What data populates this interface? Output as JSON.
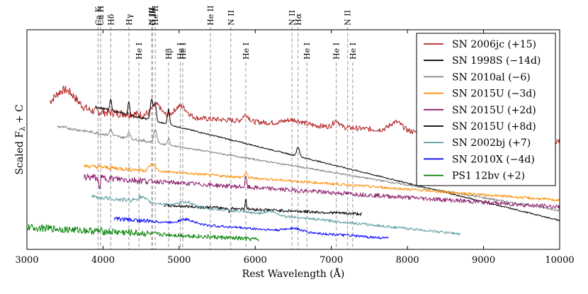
{
  "chart_data": {
    "type": "line",
    "title": "",
    "xlabel": "Rest Wavelength (Å)",
    "ylabel_main": "Scaled F",
    "ylabel_sub": "λ",
    "ylabel_tail": " + C",
    "xlim": [
      3000,
      10000
    ],
    "ylim": [
      0,
      1
    ],
    "x_ticks": [
      3000,
      4000,
      5000,
      6000,
      7000,
      8000,
      9000,
      10000
    ],
    "x_tick_labels": [
      "3000",
      "4000",
      "5000",
      "6000",
      "7000",
      "8000",
      "9000",
      "10000"
    ],
    "line_ids": [
      {
        "label": "Ca K",
        "wavelength": 3934,
        "tier": "top"
      },
      {
        "label": "Ca H",
        "wavelength": 3968,
        "tier": "top"
      },
      {
        "label": "Hδ",
        "wavelength": 4102,
        "tier": "top"
      },
      {
        "label": "Hγ",
        "wavelength": 4340,
        "tier": "top"
      },
      {
        "label": "N III",
        "wavelength": 4640,
        "tier": "top"
      },
      {
        "label": "C III",
        "wavelength": 4650,
        "tier": "top"
      },
      {
        "label": "He II",
        "wavelength": 4686,
        "tier": "top"
      },
      {
        "label": "He II",
        "wavelength": 5411,
        "tier": "top"
      },
      {
        "label": "N II",
        "wavelength": 5679,
        "tier": "top"
      },
      {
        "label": "N II",
        "wavelength": 6482,
        "tier": "top"
      },
      {
        "label": "Hα",
        "wavelength": 6563,
        "tier": "top"
      },
      {
        "label": "N II",
        "wavelength": 7214,
        "tier": "top"
      },
      {
        "label": "He I",
        "wavelength": 4471,
        "tier": "low"
      },
      {
        "label": "Hβ",
        "wavelength": 4861,
        "tier": "low"
      },
      {
        "label": "He I",
        "wavelength": 5016,
        "tier": "low"
      },
      {
        "label": "He I",
        "wavelength": 5048,
        "tier": "low"
      },
      {
        "label": "He I",
        "wavelength": 5876,
        "tier": "low"
      },
      {
        "label": "He I",
        "wavelength": 6678,
        "tier": "low"
      },
      {
        "label": "He I",
        "wavelength": 7065,
        "tier": "low"
      },
      {
        "label": "He I",
        "wavelength": 7281,
        "tier": "low"
      }
    ],
    "legend_position": "top-right",
    "series": [
      {
        "name": "SN 2006jc (+15)",
        "color": "#b22222",
        "range": [
          3300,
          10000
        ],
        "base": 0.64,
        "slope": -2.2e-05,
        "features": [
          [
            3500,
            0.09,
            140
          ],
          [
            4700,
            0.05,
            60
          ],
          [
            5020,
            0.05,
            80
          ],
          [
            5876,
            0.03,
            40
          ],
          [
            6500,
            0.02,
            120
          ],
          [
            7065,
            0.03,
            40
          ],
          [
            7850,
            0.04,
            80
          ]
        ],
        "noise": 0.012
      },
      {
        "name": "SN 1998S (−14d)",
        "color": "#000000",
        "range": [
          3900,
          10000
        ],
        "base": 0.65,
        "slope": -8.5e-05,
        "features": [
          [
            4102,
            0.05,
            12
          ],
          [
            4340,
            0.06,
            12
          ],
          [
            4640,
            0.1,
            18
          ],
          [
            4686,
            0.08,
            14
          ],
          [
            4861,
            0.07,
            14
          ],
          [
            6563,
            0.04,
            20
          ]
        ],
        "noise": 0.003
      },
      {
        "name": "SN 2010al (−6)",
        "color": "#808080",
        "range": [
          3400,
          10000
        ],
        "base": 0.56,
        "slope": -5.8e-05,
        "features": [
          [
            4102,
            0.03,
            15
          ],
          [
            4340,
            0.03,
            15
          ],
          [
            4686,
            0.06,
            20
          ],
          [
            4861,
            0.03,
            15
          ]
        ],
        "noise": 0.004
      },
      {
        "name": "SN 2015U (−3d)",
        "color": "#ff8c00",
        "range": [
          3750,
          10000
        ],
        "base": 0.38,
        "slope": -2.5e-05,
        "features": [
          [
            4650,
            0.03,
            40
          ],
          [
            5876,
            0.02,
            20
          ]
        ],
        "noise": 0.006
      },
      {
        "name": "SN 2015U (+2d)",
        "color": "#8b1a6b",
        "range": [
          3750,
          10000
        ],
        "base": 0.33,
        "slope": -2.2e-05,
        "features": [
          [
            3950,
            -0.05,
            10
          ],
          [
            5876,
            0.05,
            10
          ]
        ],
        "noise": 0.01
      },
      {
        "name": "SN 2015U (+8d)",
        "color": "#000000",
        "range": [
          4800,
          7400
        ],
        "base": 0.2,
        "slope": -1.5e-05,
        "features": [
          [
            5876,
            0.05,
            8
          ],
          [
            5660,
            -0.02,
            10
          ]
        ],
        "noise": 0.007
      },
      {
        "name": "SN 2002bj (+7)",
        "color": "#5f9ea0",
        "range": [
          3850,
          8700
        ],
        "base": 0.24,
        "slope": -3.5e-05,
        "features": [
          [
            4500,
            0.02,
            60
          ],
          [
            5100,
            0.02,
            80
          ],
          [
            6200,
            0.015,
            80
          ]
        ],
        "noise": 0.006
      },
      {
        "name": "SN 2010X (−4d)",
        "color": "#0000ff",
        "range": [
          4150,
          7750
        ],
        "base": 0.14,
        "slope": -2.5e-05,
        "features": [
          [
            5100,
            0.02,
            100
          ],
          [
            6500,
            0.015,
            100
          ]
        ],
        "noise": 0.006
      },
      {
        "name": "PS1 12bv (+2)",
        "color": "#008000",
        "range": [
          3000,
          6050
        ],
        "base": 0.1,
        "slope": -1.8e-05,
        "features": [],
        "noise": 0.01
      }
    ]
  }
}
